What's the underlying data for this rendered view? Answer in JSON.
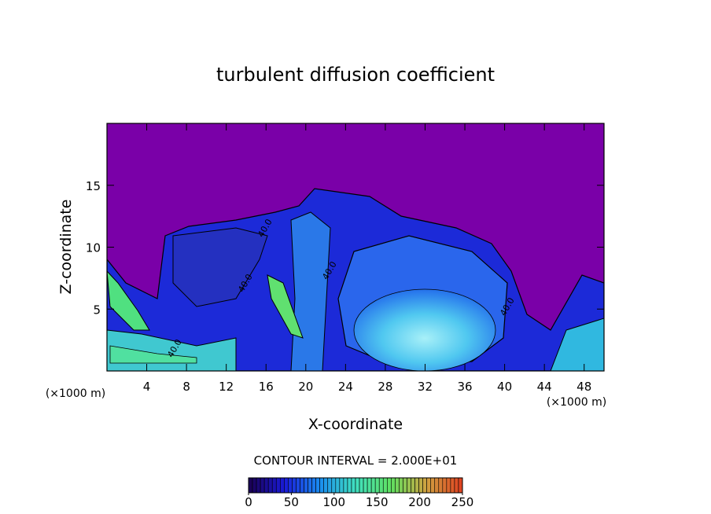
{
  "chart_data": {
    "type": "contour",
    "title": "turbulent diffusion coefficient",
    "x_label": "X-coordinate",
    "y_label": "Z-coordinate",
    "x_unit": "(×1000 m)",
    "y_unit": "(×1000 m)",
    "xlim": [
      0,
      50
    ],
    "xticks": [
      4,
      8,
      12,
      16,
      20,
      24,
      28,
      32,
      36,
      40,
      44,
      48
    ],
    "ylim": [
      0,
      20
    ],
    "yticks": [
      5,
      10,
      15
    ],
    "contour_labels": [
      "40.0",
      "40.0",
      "40.0",
      "40.0",
      "40.0"
    ],
    "contour_interval_label": "CONTOUR INTERVAL = 2.000E+01",
    "colorbar": {
      "lim": [
        0,
        250
      ],
      "ticks": [
        0,
        50,
        100,
        150,
        200,
        250
      ],
      "colors": [
        "#1a0050",
        "#1a1ad8",
        "#1a8cf0",
        "#40e0c0",
        "#60e060",
        "#d0a040",
        "#e04020"
      ]
    }
  }
}
